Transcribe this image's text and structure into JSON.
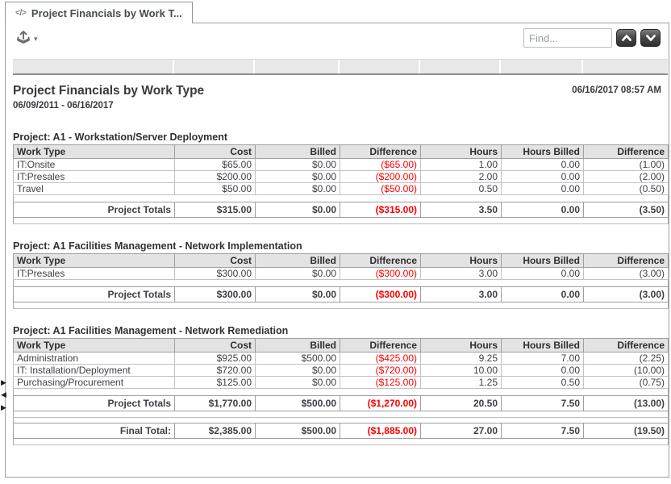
{
  "tab": {
    "label": "Project Financials by Work T..."
  },
  "toolbar": {
    "find_placeholder": "Find..."
  },
  "icons": {
    "tab_code": "</>",
    "export_caret": "▾",
    "scroll_right": "▶",
    "scroll_left": "◀"
  },
  "colors": {
    "negative": "#ff0000",
    "header_band": "#e8e8e8"
  },
  "report": {
    "title": "Project Financials by Work Type",
    "date_range": "06/09/2011 - 06/16/2017",
    "generated": "06/16/2017 08:57 AM",
    "columns": [
      "Work Type",
      "Cost",
      "Billed",
      "Difference",
      "Hours",
      "Hours Billed",
      "Difference"
    ],
    "sections": [
      {
        "title": "Project: A1 - Workstation/Server Deployment",
        "rows": [
          [
            "IT:Onsite",
            "$65.00",
            "$0.00",
            "($65.00)",
            "1.00",
            "0.00",
            "(1.00)"
          ],
          [
            "IT:Presales",
            "$200.00",
            "$0.00",
            "($200.00)",
            "2.00",
            "0.00",
            "(2.00)"
          ],
          [
            "Travel",
            "$50.00",
            "$0.00",
            "($50.00)",
            "0.50",
            "0.00",
            "(0.50)"
          ]
        ],
        "totals": {
          "label": "Project Totals",
          "values": [
            "$315.00",
            "$0.00",
            "($315.00)",
            "3.50",
            "0.00",
            "(3.50)"
          ]
        }
      },
      {
        "title": "Project: A1 Facilities Management - Network Implementation",
        "rows": [
          [
            "IT:Presales",
            "$300.00",
            "$0.00",
            "($300.00)",
            "3.00",
            "0.00",
            "(3.00)"
          ]
        ],
        "totals": {
          "label": "Project Totals",
          "values": [
            "$300.00",
            "$0.00",
            "($300.00)",
            "3.00",
            "0.00",
            "(3.00)"
          ]
        }
      },
      {
        "title": "Project: A1 Facilities Management - Network Remediation",
        "rows": [
          [
            "Administration",
            "$925.00",
            "$500.00",
            "($425.00)",
            "9.25",
            "7.00",
            "(2.25)"
          ],
          [
            "IT: Installation/Deployment",
            "$720.00",
            "$0.00",
            "($720.00)",
            "10.00",
            "0.00",
            "(10.00)"
          ],
          [
            "Purchasing/Procurement",
            "$125.00",
            "$0.00",
            "($125.00)",
            "1.25",
            "0.50",
            "(0.75)"
          ]
        ],
        "totals": {
          "label": "Project Totals",
          "values": [
            "$1,770.00",
            "$500.00",
            "($1,270.00)",
            "20.50",
            "7.50",
            "(13.00)"
          ]
        }
      }
    ],
    "final_total": {
      "label": "Final Total:",
      "values": [
        "$2,385.00",
        "$500.00",
        "($1,885.00)",
        "27.00",
        "7.50",
        "(19.50)"
      ]
    }
  }
}
